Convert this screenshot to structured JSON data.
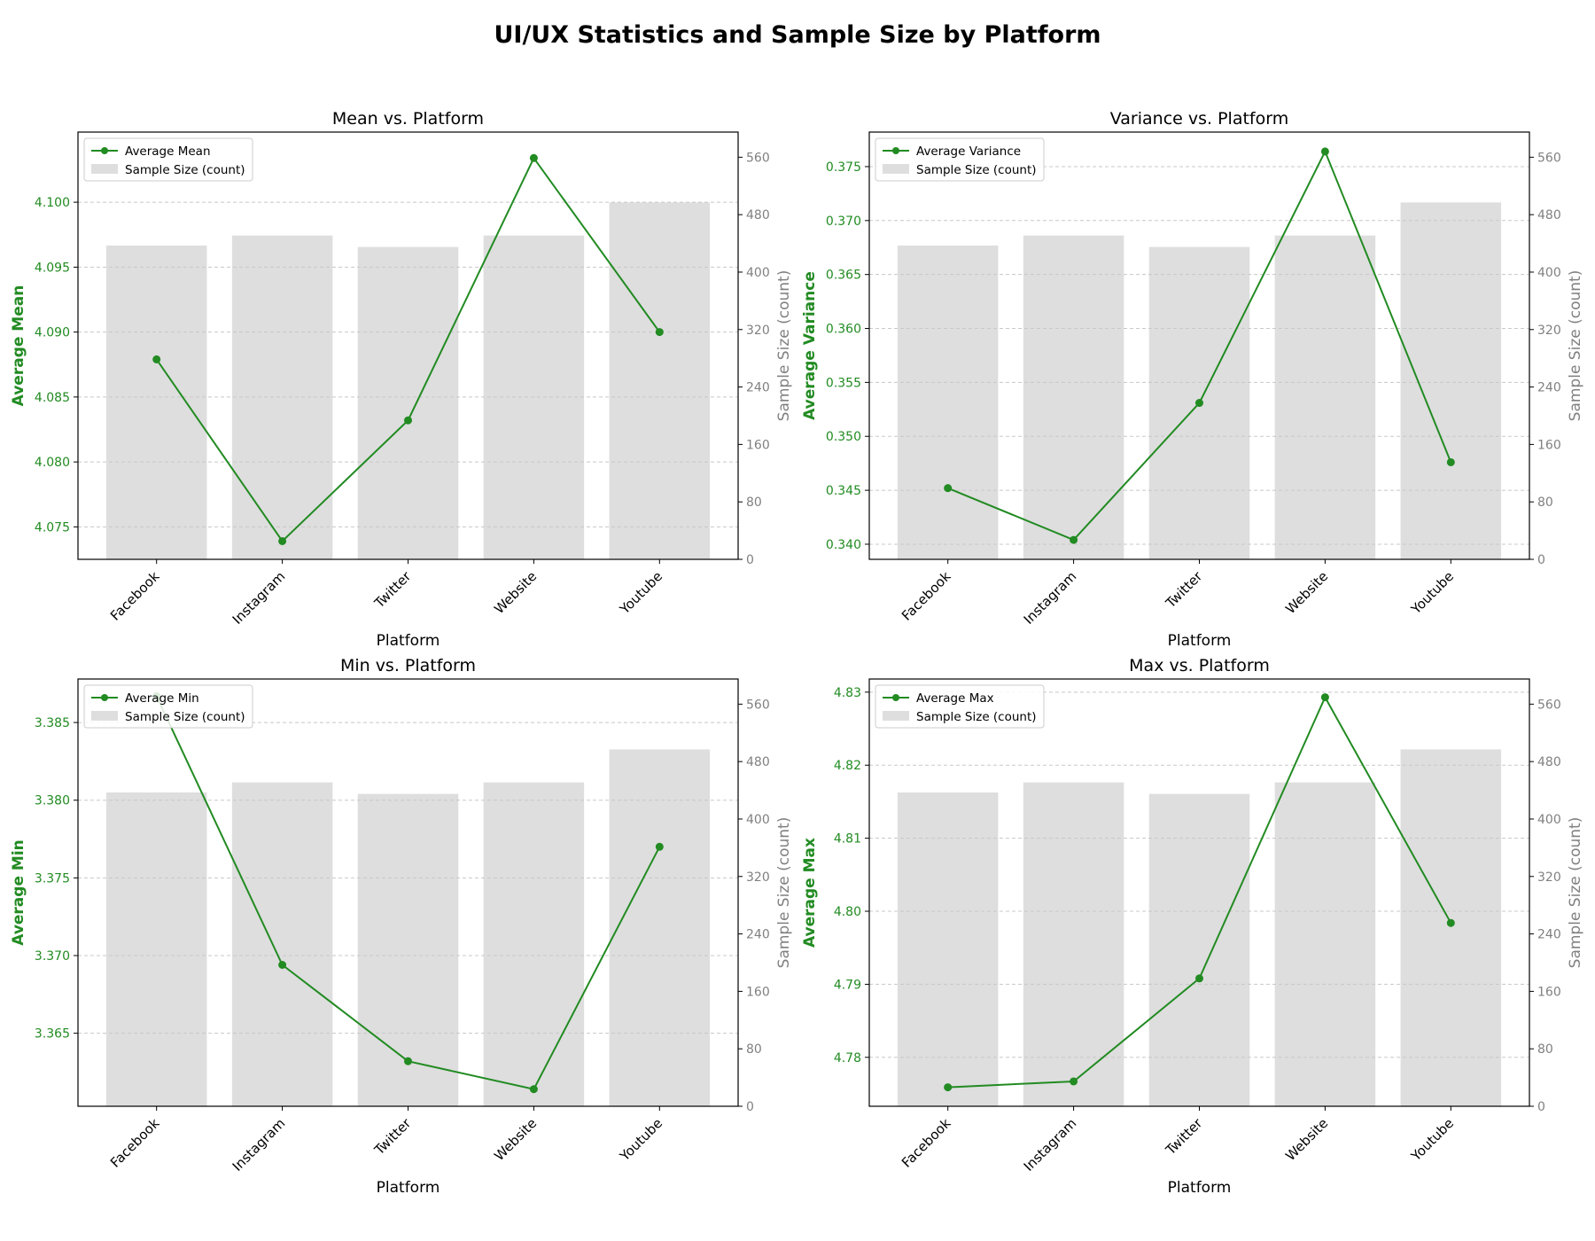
{
  "figure_title": "UI/UX Statistics and Sample Size by Platform",
  "colors": {
    "line": "#228b22",
    "bar": "#dedede",
    "right_axis": "#808080",
    "grid": "#c8c8c8"
  },
  "chart_data": [
    {
      "type": "bar+line",
      "title": "Mean vs. Platform",
      "xlabel": "Platform",
      "ylabel": "Average Mean",
      "y2label": "Sample Size (count)",
      "categories": [
        "Facebook",
        "Instagram",
        "Twitter",
        "Website",
        "Youtube"
      ],
      "series": [
        {
          "name": "Average Mean",
          "kind": "line",
          "axis": "left",
          "values": [
            4.0879,
            4.0739,
            4.0832,
            4.1034,
            4.09
          ]
        },
        {
          "name": "Sample Size (count)",
          "kind": "bar",
          "axis": "right",
          "values": [
            437,
            451,
            435,
            451,
            497
          ]
        }
      ],
      "ylim": [
        4.0725,
        4.1054
      ],
      "yticks": [
        "4.075",
        "4.080",
        "4.085",
        "4.090",
        "4.095",
        "4.100"
      ],
      "y2lim": [
        0,
        595
      ],
      "y2ticks": [
        "0",
        "80",
        "160",
        "240",
        "320",
        "400",
        "480",
        "560"
      ],
      "grid": true,
      "legend": "top-left"
    },
    {
      "type": "bar+line",
      "title": "Variance vs. Platform",
      "xlabel": "Platform",
      "ylabel": "Average Variance",
      "y2label": "Sample Size (count)",
      "categories": [
        "Facebook",
        "Instagram",
        "Twitter",
        "Website",
        "Youtube"
      ],
      "series": [
        {
          "name": "Average Variance",
          "kind": "line",
          "axis": "left",
          "values": [
            0.3452,
            0.3404,
            0.3531,
            0.3764,
            0.3476
          ]
        },
        {
          "name": "Sample Size (count)",
          "kind": "bar",
          "axis": "right",
          "values": [
            437,
            451,
            435,
            451,
            497
          ]
        }
      ],
      "ylim": [
        0.3386,
        0.3782
      ],
      "yticks": [
        "0.340",
        "0.345",
        "0.350",
        "0.355",
        "0.360",
        "0.365",
        "0.370",
        "0.375"
      ],
      "y2lim": [
        0,
        595
      ],
      "y2ticks": [
        "0",
        "80",
        "160",
        "240",
        "320",
        "400",
        "480",
        "560"
      ],
      "grid": true,
      "legend": "top-left"
    },
    {
      "type": "bar+line",
      "title": "Min vs. Platform",
      "xlabel": "Platform",
      "ylabel": "Average Min",
      "y2label": "Sample Size (count)",
      "categories": [
        "Facebook",
        "Instagram",
        "Twitter",
        "Website",
        "Youtube"
      ],
      "series": [
        {
          "name": "Average Min",
          "kind": "line",
          "axis": "left",
          "values": [
            3.3867,
            3.3694,
            3.3632,
            3.3614,
            3.377
          ]
        },
        {
          "name": "Sample Size (count)",
          "kind": "bar",
          "axis": "right",
          "values": [
            437,
            451,
            435,
            451,
            497
          ]
        }
      ],
      "ylim": [
        3.3603,
        3.3878
      ],
      "yticks": [
        "3.365",
        "3.370",
        "3.375",
        "3.380",
        "3.385"
      ],
      "y2lim": [
        0,
        595
      ],
      "y2ticks": [
        "0",
        "80",
        "160",
        "240",
        "320",
        "400",
        "480",
        "560"
      ],
      "grid": true,
      "legend": "top-left"
    },
    {
      "type": "bar+line",
      "title": "Max vs. Platform",
      "xlabel": "Platform",
      "ylabel": "Average Max",
      "y2label": "Sample Size (count)",
      "categories": [
        "Facebook",
        "Instagram",
        "Twitter",
        "Website",
        "Youtube"
      ],
      "series": [
        {
          "name": "Average Max",
          "kind": "line",
          "axis": "left",
          "values": [
            4.7759,
            4.7767,
            4.7908,
            4.8293,
            4.7984
          ]
        },
        {
          "name": "Sample Size (count)",
          "kind": "bar",
          "axis": "right",
          "values": [
            437,
            451,
            435,
            451,
            497
          ]
        }
      ],
      "ylim": [
        4.7733,
        4.8318
      ],
      "yticks": [
        "4.78",
        "4.79",
        "4.80",
        "4.81",
        "4.82",
        "4.83"
      ],
      "y2lim": [
        0,
        595
      ],
      "y2ticks": [
        "0",
        "80",
        "160",
        "240",
        "320",
        "400",
        "480",
        "560"
      ],
      "grid": true,
      "legend": "top-left"
    }
  ]
}
